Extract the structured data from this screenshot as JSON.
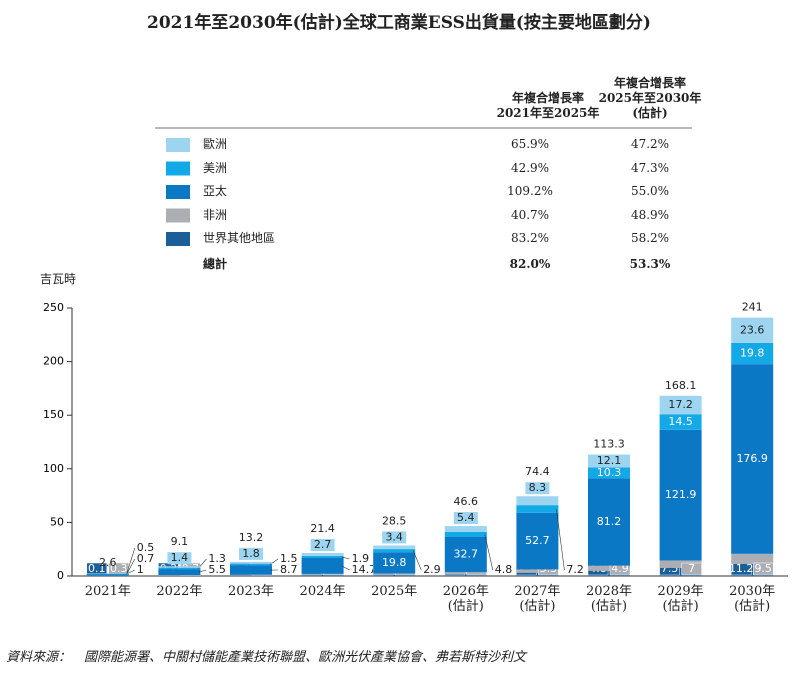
{
  "chart_data": {
    "type": "stacked_bar",
    "title": "2021年至2030年(估計)全球工商業ESS出貨量(按主要地區劃分)",
    "y_label": "吉瓦時",
    "source": "資料來源：　國際能源署、中關村儲能產業技術聯盟、歐洲光伏產業協會、弗若斯特沙利文",
    "categories": [
      "2021年",
      "2022年",
      "2023年",
      "2024年",
      "2025年",
      "2026年\n(估計)",
      "2027年\n(估計)",
      "2028年\n(估計)",
      "2029年\n(估計)",
      "2030年\n(估計)"
    ],
    "series": [
      {
        "name": "歐洲",
        "color": "#9dd4f0",
        "values": [
          0.5,
          1.4,
          1.8,
          2.7,
          3.4,
          5.4,
          8.3,
          12.1,
          17.2,
          23.6
        ],
        "cagr": [
          "65.9%",
          "47.2%"
        ]
      },
      {
        "name": "美洲",
        "color": "#12a9e6",
        "values": [
          0.7,
          1.3,
          1.5,
          1.9,
          2.9,
          4.8,
          7.2,
          10.3,
          14.5,
          19.8
        ],
        "cagr": [
          "42.9%",
          "47.3%"
        ]
      },
      {
        "name": "亞太",
        "color": "#0b78c6",
        "values": [
          1.0,
          5.5,
          8.7,
          14.7,
          19.8,
          32.7,
          52.7,
          81.2,
          121.9,
          176.9
        ],
        "cagr": [
          "109.2%",
          "55.0%"
        ]
      },
      {
        "name": "非洲",
        "color": "#acaeb4",
        "values": [
          0.3,
          0.7,
          0.9,
          1.0,
          1.3,
          2.1,
          3.3,
          4.9,
          7.0,
          9.5
        ],
        "cagr": [
          "40.7%",
          "48.9%"
        ]
      },
      {
        "name": "世界其他地區",
        "color": "#1b5e98",
        "values": [
          0.1,
          0.2,
          0.3,
          1.1,
          1.1,
          1.6,
          2.9,
          4.8,
          7.5,
          11.2
        ],
        "cagr": [
          "83.2%",
          "58.2%"
        ]
      }
    ],
    "totals": [
      2.6,
      9.1,
      13.2,
      21.4,
      28.5,
      46.6,
      74.4,
      113.3,
      168.1,
      241.0
    ],
    "cagr_headers": [
      "年複合增長率\n2021年至2025年",
      "年複合增長率\n2025年至2030年\n(估計)"
    ],
    "total_label": "總計",
    "total_cagr": [
      "82.0%",
      "53.3%"
    ],
    "ylim": [
      0,
      250
    ],
    "yticks": [
      0,
      50,
      100,
      150,
      200,
      250
    ]
  }
}
